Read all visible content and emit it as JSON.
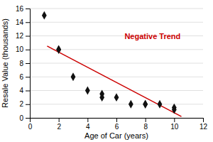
{
  "chart_data": {
    "type": "scatter",
    "xlabel": "Age of Car (years)",
    "ylabel": "Resale Value (thousands)",
    "series": [
      {
        "type": "scatter",
        "marker": "diamond",
        "color": "#111111",
        "x": [
          1,
          2,
          2,
          3,
          4,
          5,
          5,
          6,
          7,
          8,
          8,
          9,
          10,
          10
        ],
        "values": [
          15,
          10,
          10,
          6,
          4,
          3.5,
          3,
          3,
          2,
          2,
          2,
          2,
          1.5,
          1.2
        ]
      },
      {
        "type": "line",
        "line_style": "solid",
        "color": "#cc0000",
        "x": [
          1.2,
          10.5
        ],
        "values": [
          10.5,
          0.2
        ]
      }
    ],
    "annotations": [
      {
        "text": "Negative Trend",
        "x": 8.5,
        "y": 11.8,
        "color": "#cc0000"
      }
    ],
    "xlim": [
      0,
      12
    ],
    "ylim": [
      0,
      16
    ],
    "xticks": [
      0,
      2,
      4,
      6,
      8,
      10,
      12
    ],
    "yticks": [
      0,
      2,
      4,
      6,
      8,
      10,
      12,
      14,
      16
    ],
    "grid": "y"
  }
}
